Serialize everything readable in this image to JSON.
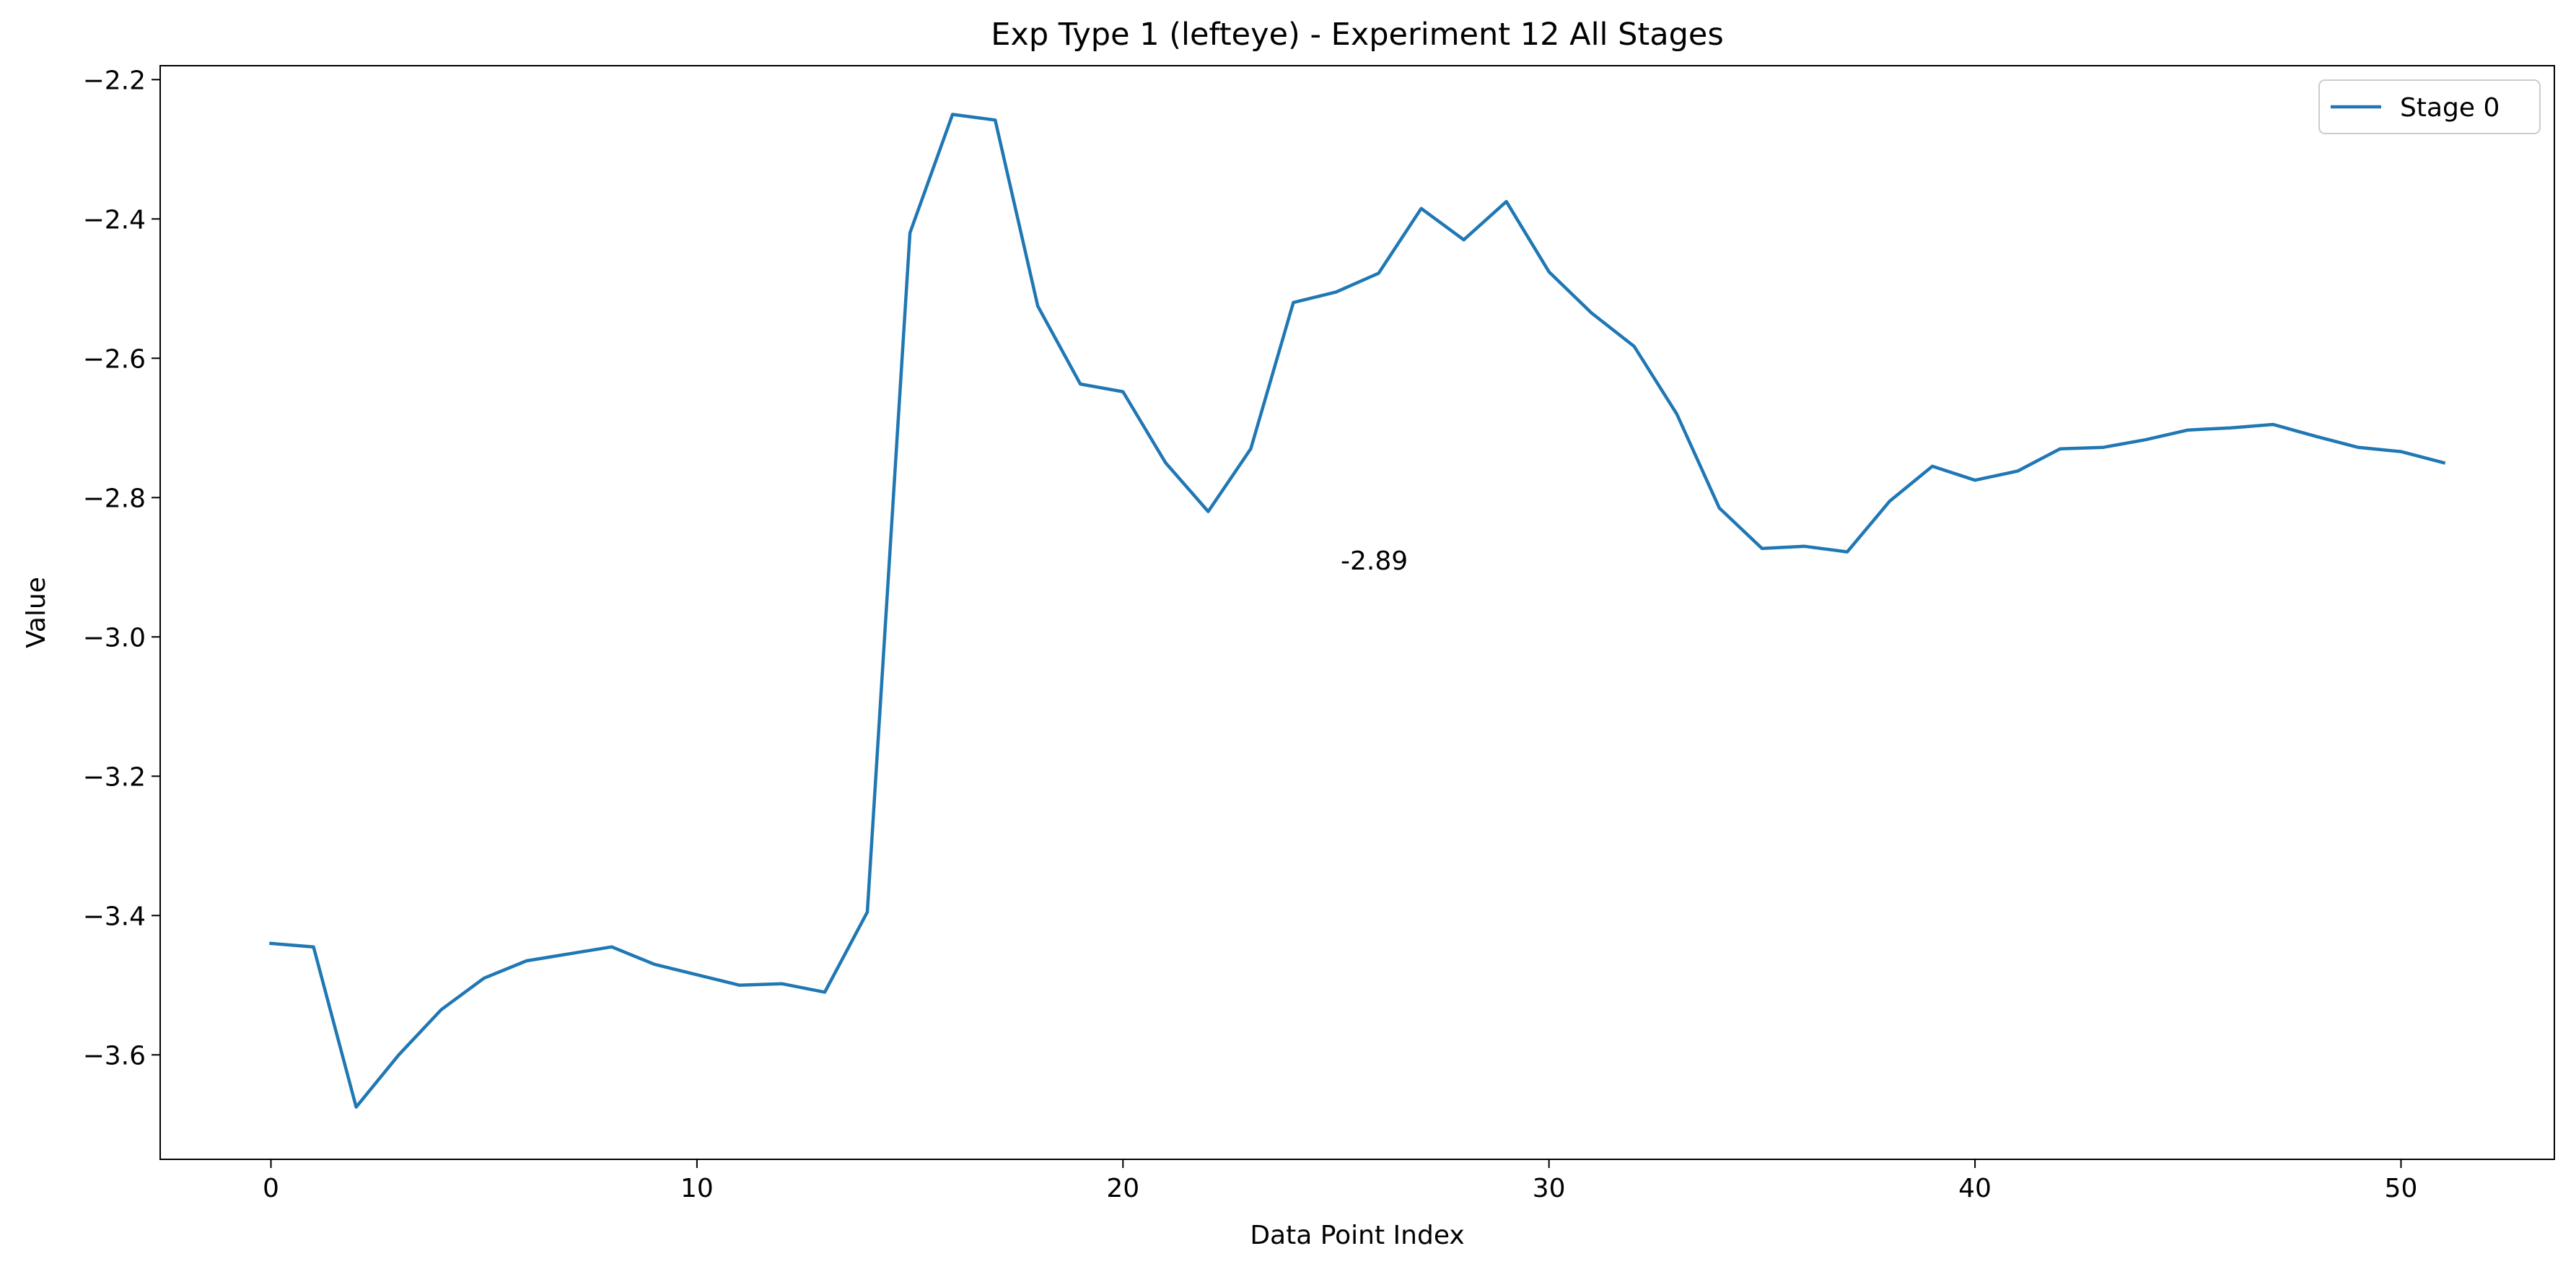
{
  "chart_data": {
    "type": "line",
    "title": "Exp Type 1 (lefteye) - Experiment 12 All Stages",
    "xlabel": "Data Point Index",
    "ylabel": "Value",
    "xlim": [
      -2.6,
      53.6
    ],
    "ylim": [
      -3.75,
      -2.18
    ],
    "x_ticks": [
      0,
      10,
      20,
      30,
      40,
      50
    ],
    "y_ticks": [
      -3.6,
      -3.4,
      -3.2,
      -3.0,
      -2.8,
      -2.6,
      -2.4,
      -2.2
    ],
    "x_tick_labels": [
      "0",
      "10",
      "20",
      "30",
      "40",
      "50"
    ],
    "y_tick_labels": [
      "−3.6",
      "−3.4",
      "−3.2",
      "−3.0",
      "−2.8",
      "−2.6",
      "−2.4",
      "−2.2"
    ],
    "grid": false,
    "legend_position": "top-right",
    "series": [
      {
        "name": "Stage 0",
        "color": "#1f77b4",
        "x": [
          0,
          1,
          2,
          3,
          4,
          5,
          6,
          7,
          8,
          9,
          10,
          11,
          12,
          13,
          14,
          15,
          16,
          17,
          18,
          19,
          20,
          21,
          22,
          23,
          24,
          25,
          26,
          27,
          28,
          29,
          30,
          31,
          32,
          33,
          34,
          35,
          36,
          37,
          38,
          39,
          40,
          41,
          42,
          43,
          44,
          45,
          46,
          47,
          48,
          49,
          50,
          51
        ],
        "y": [
          -3.44,
          -3.445,
          -3.675,
          -3.6,
          -3.535,
          -3.49,
          -3.465,
          -3.455,
          -3.445,
          -3.47,
          -3.485,
          -3.5,
          -3.498,
          -3.51,
          -3.395,
          -2.42,
          -2.25,
          -2.258,
          -2.525,
          -2.637,
          -2.648,
          -2.75,
          -2.82,
          -2.73,
          -2.52,
          -2.505,
          -2.478,
          -2.385,
          -2.43,
          -2.375,
          -2.476,
          -2.535,
          -2.583,
          -2.68,
          -2.815,
          -2.873,
          -2.87,
          -2.878,
          -2.805,
          -2.755,
          -2.775,
          -2.762,
          -2.73,
          -2.728,
          -2.717,
          -2.703,
          -2.7,
          -2.695,
          -2.712,
          -2.728,
          -2.734,
          -2.75
        ]
      }
    ],
    "annotations": [
      {
        "text": "-2.89",
        "x": 25.9,
        "y": -2.89
      }
    ]
  }
}
